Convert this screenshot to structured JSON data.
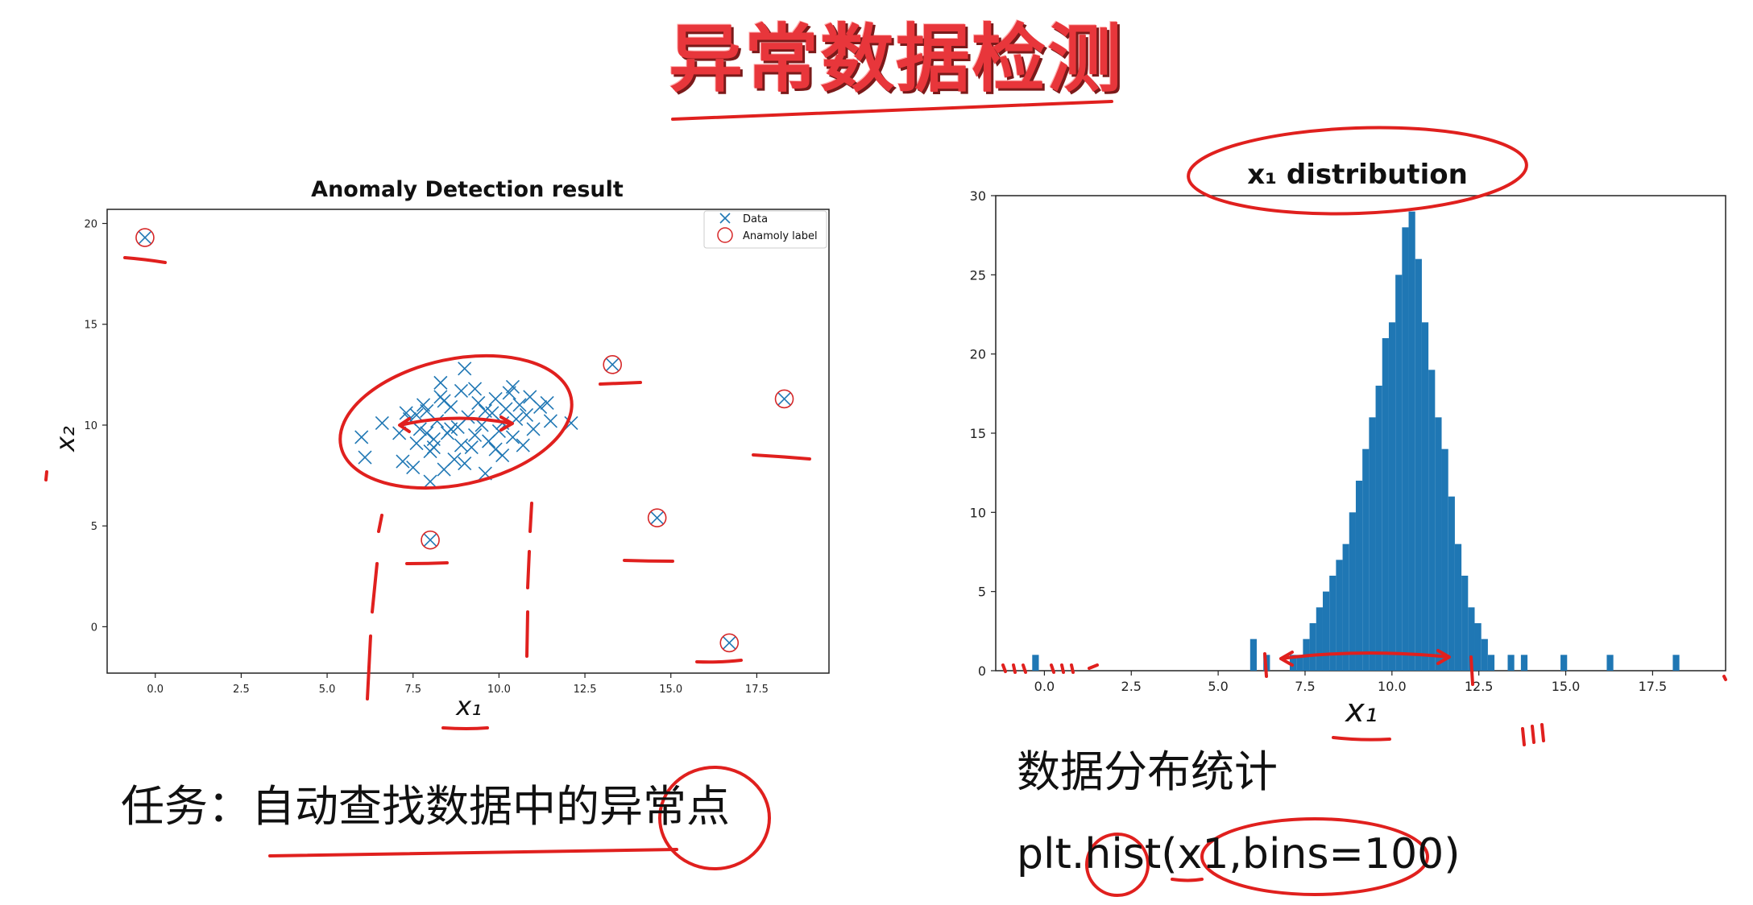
{
  "slide": {
    "title": "异常数据检测",
    "task_caption": "任务：自动查找数据中的异常点",
    "dist_caption": "数据分布统计",
    "code_caption": "plt.hist(x1,bins=100)"
  },
  "colors": {
    "title_red": "#e8363b",
    "ink_red": "#e0201e",
    "data_blue": "#1f77b4",
    "anomaly_red": "#d62728"
  },
  "chart_data": [
    {
      "type": "scatter",
      "title": "Anomaly Detection result",
      "xlabel": "x₁",
      "ylabel": "x₂",
      "xlim": [
        -1.4,
        19.6
      ],
      "ylim": [
        -2.3,
        20.7
      ],
      "xticks": [
        "0.0",
        "2.5",
        "5.0",
        "7.5",
        "10.0",
        "12.5",
        "15.0",
        "17.5"
      ],
      "yticks": [
        "0",
        "5",
        "10",
        "15",
        "20"
      ],
      "legend": {
        "placement": "top-right",
        "entries": [
          "Data",
          "Anamoly label"
        ]
      },
      "grid": false,
      "series": [
        {
          "name": "Data",
          "marker": "x",
          "points": [
            [
              6.0,
              9.4
            ],
            [
              6.1,
              8.4
            ],
            [
              6.6,
              10.1
            ],
            [
              7.1,
              9.6
            ],
            [
              7.3,
              10.6
            ],
            [
              7.4,
              10.3
            ],
            [
              7.2,
              8.2
            ],
            [
              7.5,
              7.9
            ],
            [
              7.6,
              9.1
            ],
            [
              7.7,
              9.8
            ],
            [
              7.8,
              11.0
            ],
            [
              7.9,
              10.7
            ],
            [
              8.0,
              8.7
            ],
            [
              8.1,
              9.3
            ],
            [
              8.2,
              10.2
            ],
            [
              8.3,
              11.4
            ],
            [
              8.4,
              7.8
            ],
            [
              8.5,
              9.6
            ],
            [
              8.6,
              10.9
            ],
            [
              8.7,
              8.3
            ],
            [
              8.8,
              9.9
            ],
            [
              8.9,
              11.7
            ],
            [
              9.0,
              12.8
            ],
            [
              9.1,
              10.4
            ],
            [
              9.2,
              8.9
            ],
            [
              9.3,
              9.5
            ],
            [
              9.4,
              11.1
            ],
            [
              9.5,
              10.0
            ],
            [
              9.6,
              7.6
            ],
            [
              9.7,
              9.2
            ],
            [
              9.8,
              10.6
            ],
            [
              9.9,
              11.3
            ],
            [
              10.0,
              9.7
            ],
            [
              10.1,
              8.5
            ],
            [
              10.2,
              10.8
            ],
            [
              10.3,
              11.6
            ],
            [
              10.4,
              9.4
            ],
            [
              10.5,
              10.3
            ],
            [
              10.6,
              11.0
            ],
            [
              10.7,
              9.0
            ],
            [
              10.8,
              10.5
            ],
            [
              10.9,
              11.4
            ],
            [
              11.0,
              9.8
            ],
            [
              11.2,
              10.9
            ],
            [
              11.4,
              11.1
            ],
            [
              11.5,
              10.2
            ],
            [
              8.3,
              12.1
            ],
            [
              8.9,
              9.0
            ],
            [
              9.6,
              10.7
            ],
            [
              8.1,
              8.9
            ],
            [
              7.9,
              9.6
            ],
            [
              9.3,
              11.8
            ],
            [
              10.1,
              10.1
            ],
            [
              8.6,
              9.8
            ],
            [
              9.9,
              8.8
            ],
            [
              7.6,
              10.5
            ],
            [
              8.4,
              11.2
            ],
            [
              10.4,
              11.9
            ],
            [
              9.0,
              8.1
            ],
            [
              8.0,
              7.2
            ],
            [
              12.1,
              10.1
            ],
            [
              13.3,
              13.0
            ],
            [
              18.3,
              11.3
            ],
            [
              16.7,
              -0.8
            ],
            [
              14.6,
              5.4
            ],
            [
              8.0,
              4.3
            ],
            [
              -0.3,
              19.3
            ]
          ]
        },
        {
          "name": "Anamoly label",
          "marker": "o",
          "points": [
            [
              -0.3,
              19.3
            ],
            [
              13.3,
              13.0
            ],
            [
              18.3,
              11.3
            ],
            [
              14.6,
              5.4
            ],
            [
              8.0,
              4.3
            ],
            [
              16.7,
              -0.8
            ]
          ]
        }
      ]
    },
    {
      "type": "bar",
      "title": "x₁ distribution",
      "xlabel": "x₁",
      "xlim": [
        -1.4,
        19.6
      ],
      "ylim": [
        0,
        30
      ],
      "xticks": [
        "0.0",
        "2.5",
        "5.0",
        "7.5",
        "10.0",
        "12.5",
        "15.0",
        "17.5"
      ],
      "yticks": [
        "0",
        "5",
        "10",
        "15",
        "20",
        "25",
        "30"
      ],
      "grid": false,
      "bin_edges_start": -0.35,
      "bin_width": 0.19,
      "counts": [
        1,
        0,
        0,
        0,
        0,
        0,
        0,
        0,
        0,
        0,
        0,
        0,
        0,
        0,
        0,
        0,
        0,
        0,
        0,
        0,
        0,
        0,
        0,
        0,
        0,
        0,
        0,
        0,
        0,
        0,
        0,
        0,
        0,
        2,
        0,
        1,
        0,
        0,
        0,
        1,
        1,
        2,
        3,
        4,
        5,
        6,
        7,
        8,
        10,
        12,
        14,
        16,
        18,
        21,
        22,
        25,
        28,
        29,
        26,
        22,
        19,
        16,
        14,
        11,
        8,
        6,
        4,
        3,
        2,
        1,
        0,
        0,
        1,
        0,
        1,
        0,
        0,
        0,
        0,
        0,
        1,
        0,
        0,
        0,
        0,
        0,
        0,
        1,
        0,
        0,
        0,
        0,
        0,
        0,
        0,
        0,
        0,
        1,
        0,
        0
      ]
    }
  ]
}
